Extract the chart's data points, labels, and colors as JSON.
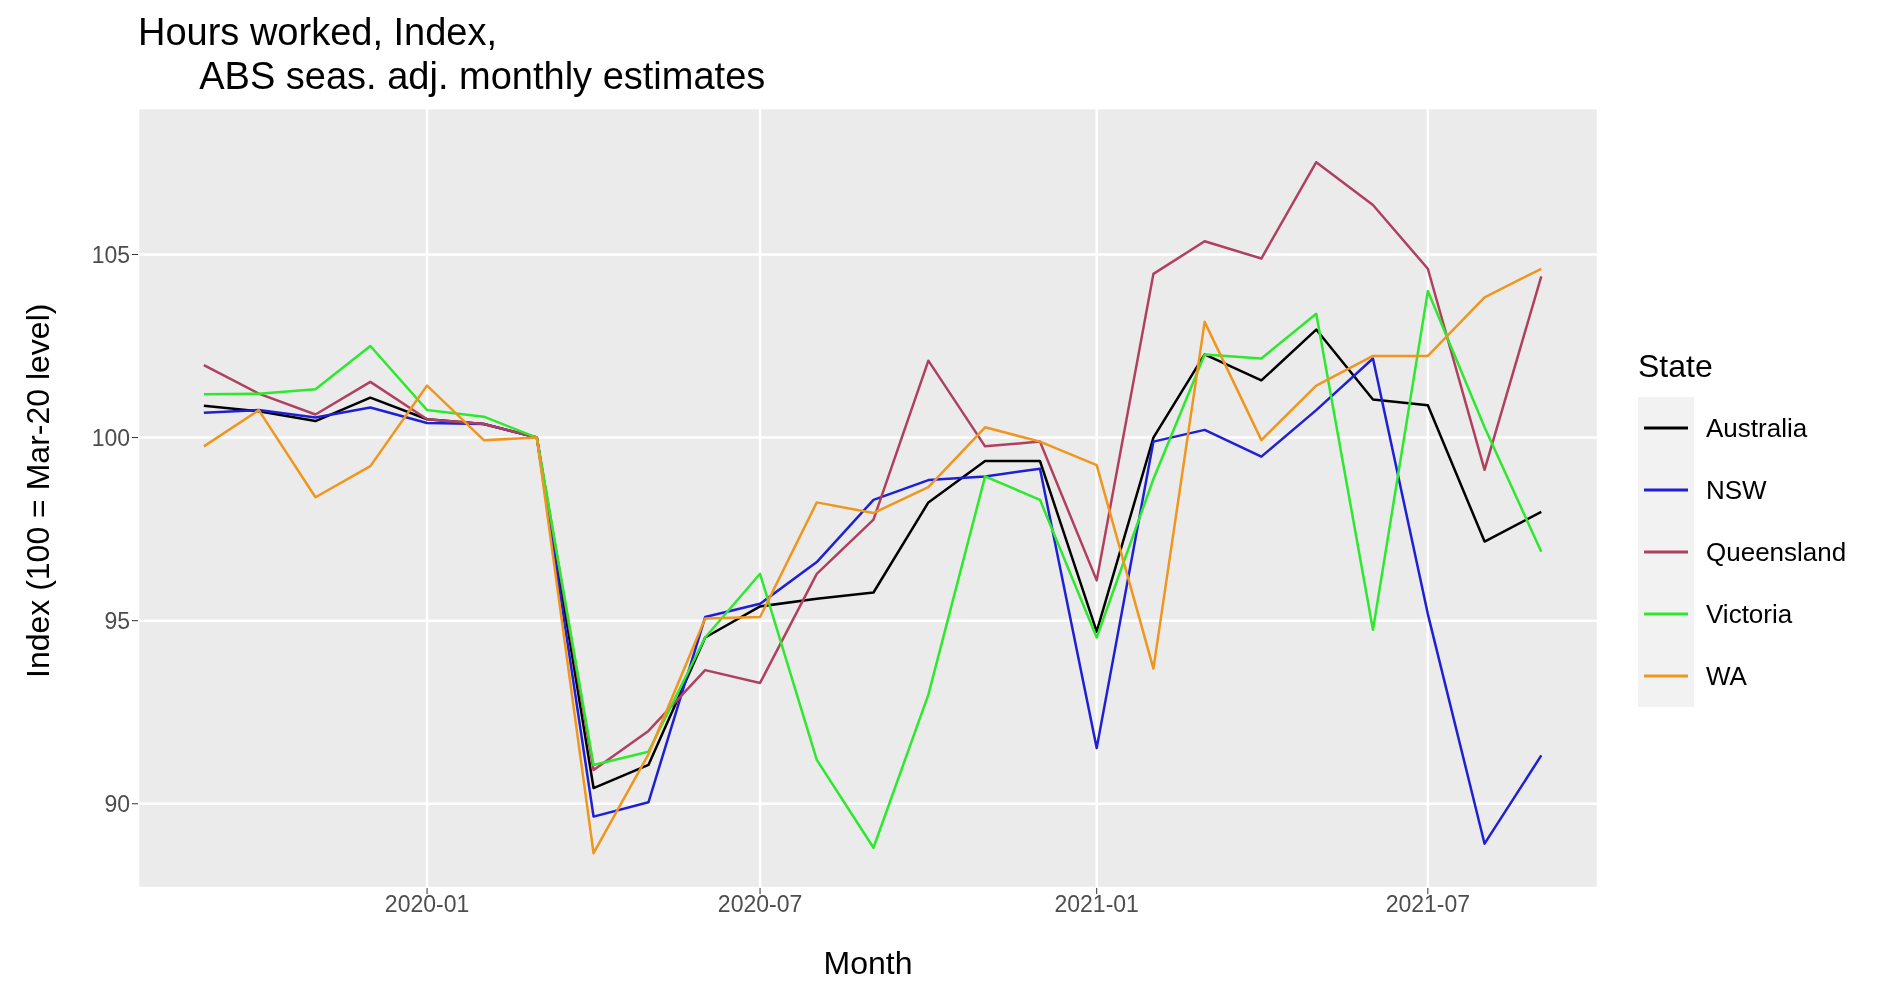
{
  "chart_data": {
    "type": "line",
    "title": "Hours worked, Index,\n      ABS seas. adj. monthly estimates",
    "xlabel": "Month",
    "ylabel": "Index (100 = Mar-20 level)",
    "legend_title": "State",
    "x": [
      "2019-09",
      "2019-10",
      "2019-11",
      "2019-12",
      "2020-01",
      "2020-02",
      "2020-03",
      "2020-04",
      "2020-05",
      "2020-06",
      "2020-07",
      "2020-08",
      "2020-09",
      "2020-10",
      "2020-11",
      "2020-12",
      "2021-01",
      "2021-02",
      "2021-03",
      "2021-04",
      "2021-05",
      "2021-06",
      "2021-07",
      "2021-08",
      "2021-09"
    ],
    "series": [
      {
        "name": "Australia",
        "color": "#000000",
        "values": [
          100.87,
          100.72,
          100.45,
          101.09,
          100.5,
          100.37,
          100,
          90.43,
          91.06,
          94.54,
          95.39,
          95.6,
          95.77,
          98.23,
          99.36,
          99.36,
          94.7,
          100,
          102.27,
          101.56,
          102.95,
          101.04,
          100.88,
          97.16,
          97.97
        ]
      },
      {
        "name": "NSW",
        "color": "#1f1fd6",
        "values": [
          100.68,
          100.75,
          100.55,
          100.82,
          100.4,
          100.37,
          100,
          89.65,
          90.04,
          95.1,
          95.46,
          96.6,
          98.3,
          98.84,
          98.94,
          99.15,
          91.52,
          99.89,
          100.21,
          99.48,
          100.75,
          102.16,
          95.18,
          88.91,
          91.32
        ]
      },
      {
        "name": "Queensland",
        "color": "#b0405f",
        "values": [
          101.98,
          101.2,
          100.63,
          101.52,
          100.5,
          100.37,
          100,
          90.92,
          91.99,
          93.65,
          93.3,
          96.28,
          97.76,
          102.1,
          99.76,
          99.89,
          96.1,
          104.47,
          105.36,
          104.89,
          107.52,
          106.35,
          104.61,
          99.12,
          104.4
        ]
      },
      {
        "name": "Victoria",
        "color": "#2ee82e",
        "values": [
          101.18,
          101.2,
          101.32,
          102.5,
          100.75,
          100.57,
          100,
          91.06,
          91.42,
          94.54,
          96.28,
          91.2,
          88.8,
          92.98,
          98.94,
          98.3,
          94.54,
          98.87,
          102.27,
          102.16,
          103.38,
          94.75,
          104.0,
          100.28,
          96.88
        ]
      },
      {
        "name": "WA",
        "color": "#f0961e",
        "values": [
          99.76,
          100.75,
          98.37,
          99.22,
          101.42,
          99.93,
          100,
          88.65,
          91.35,
          95.06,
          95.1,
          98.23,
          97.94,
          98.65,
          100.28,
          99.89,
          99.25,
          93.69,
          103.16,
          99.93,
          101.42,
          102.23,
          102.23,
          103.83,
          104.61
        ]
      }
    ],
    "xlim": [
      "2019-07-27",
      "2021-10-02"
    ],
    "xticks": [
      "2020-01",
      "2020-07",
      "2021-01",
      "2021-07"
    ],
    "ylim": [
      87.7,
      109
    ],
    "yticks": [
      90,
      95,
      100,
      105
    ],
    "grid": true,
    "legend": "right",
    "marker": "none",
    "line_style": "solid"
  }
}
